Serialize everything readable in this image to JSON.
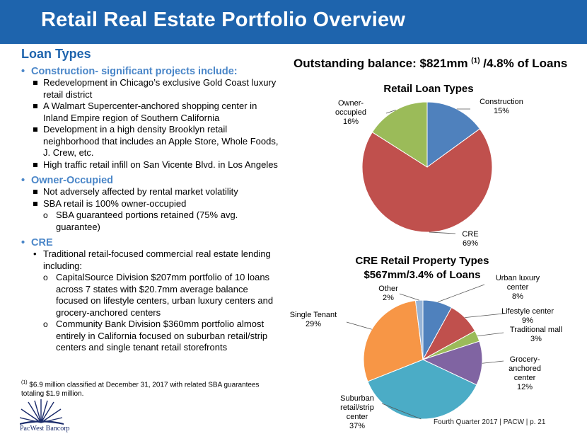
{
  "title": "Retail Real Estate Portfolio Overview",
  "left": {
    "heading": "Loan Types",
    "construction": {
      "head": "Construction- significant projects include:",
      "items": [
        "Redevelopment in Chicago’s exclusive Gold Coast luxury retail district",
        "A Walmart Supercenter-anchored shopping center in Inland Empire region of Southern California",
        "Development in a high density Brooklyn retail neighborhood that includes an Apple Store, Whole Foods, J. Crew, etc.",
        "High traffic retail infill on San Vicente Blvd. in Los Angeles"
      ]
    },
    "owner": {
      "head": "Owner-Occupied",
      "items": [
        "Not adversely affected by rental market volatility",
        "SBA retail is 100% owner-occupied"
      ],
      "sub_items": [
        "SBA guaranteed portions retained (75% avg. guarantee)"
      ]
    },
    "cre": {
      "head": "CRE",
      "items": [
        "Traditional retail-focused commercial real estate lending including:"
      ],
      "sub_items": [
        "CapitalSource Division $207mm portfolio of 10 loans across 7 states with $20.7mm average balance focused on lifestyle centers, urban luxury centers and grocery-anchored centers",
        "Community Bank Division $360mm portfolio almost entirely in California focused on suburban retail/strip centers and single tenant retail storefronts"
      ]
    }
  },
  "footnote": {
    "marker": "(1)",
    "text": " $6.9 million classified at December 31, 2017 with related SBA guarantees totaling $1.9 million."
  },
  "logo": {
    "name": "PacWest Bancorp"
  },
  "right_heading": {
    "pre": "Outstanding balance: $821mm ",
    "marker": "(1)",
    "post": " /4.8% of Loans"
  },
  "footer": "Fourth Quarter 2017 | PACW | p. 21",
  "chart_data": [
    {
      "type": "pie",
      "title": "Retail Loan Types",
      "slices": [
        {
          "label": "Construction",
          "value": 15,
          "pct_label": "15%",
          "color": "#4f81bd"
        },
        {
          "label": "CRE",
          "value": 69,
          "pct_label": "69%",
          "color": "#c0504d"
        },
        {
          "label": "Owner-occupied",
          "value": 16,
          "pct_label": "16%",
          "color": "#9bbb59"
        }
      ]
    },
    {
      "type": "pie",
      "title": "CRE Retail Property Types",
      "subtitle": "$567mm/3.4% of Loans",
      "slices": [
        {
          "label": "Urban luxury center",
          "value": 8,
          "pct_label": "8%",
          "color": "#4f81bd"
        },
        {
          "label": "Lifestyle center",
          "value": 9,
          "pct_label": "9%",
          "color": "#c0504d"
        },
        {
          "label": "Traditional mall",
          "value": 3,
          "pct_label": "3%",
          "color": "#9bbb59"
        },
        {
          "label": "Grocery-anchored center",
          "value": 12,
          "pct_label": "12%",
          "color": "#8064a2"
        },
        {
          "label": "Suburban retail/strip center",
          "value": 37,
          "pct_label": "37%",
          "color": "#4bacc6"
        },
        {
          "label": "Single Tenant",
          "value": 29,
          "pct_label": "29%",
          "color": "#f79646"
        },
        {
          "label": "Other",
          "value": 2,
          "pct_label": "2%",
          "color": "#95b3d7"
        }
      ]
    }
  ]
}
